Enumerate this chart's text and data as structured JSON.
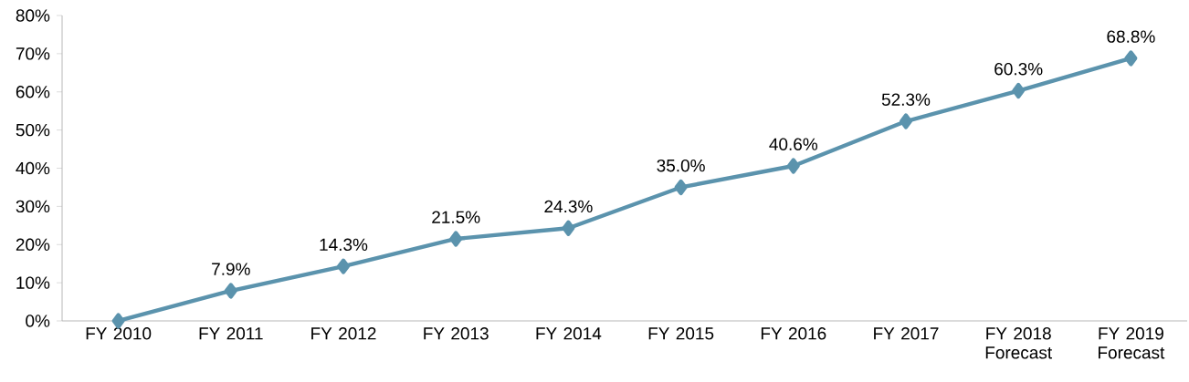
{
  "chart_data": {
    "type": "line",
    "categories": [
      "FY 2010",
      "FY 2011",
      "FY 2012",
      "FY 2013",
      "FY 2014",
      "FY 2015",
      "FY 2016",
      "FY 2017",
      "FY 2018 Forecast",
      "FY 2019 Forecast"
    ],
    "values": [
      0.0,
      7.9,
      14.3,
      21.5,
      24.3,
      35.0,
      40.6,
      52.3,
      60.3,
      68.8
    ],
    "value_labels": [
      null,
      "7.9%",
      "14.3%",
      "21.5%",
      "24.3%",
      "35.0%",
      "40.6%",
      "52.3%",
      "60.3%",
      "68.8%"
    ],
    "color": "#5b93ad",
    "marker": "diamond",
    "line_style": "solid",
    "ylim": [
      0,
      80
    ],
    "yticks": [
      {
        "value": 0,
        "label": "0%"
      },
      {
        "value": 10,
        "label": "10%"
      },
      {
        "value": 20,
        "label": "20%"
      },
      {
        "value": 30,
        "label": "30%"
      },
      {
        "value": 40,
        "label": "40%"
      },
      {
        "value": 50,
        "label": "50%"
      },
      {
        "value": 60,
        "label": "60%"
      },
      {
        "value": 70,
        "label": "70%"
      },
      {
        "value": 80,
        "label": "80%"
      }
    ]
  }
}
